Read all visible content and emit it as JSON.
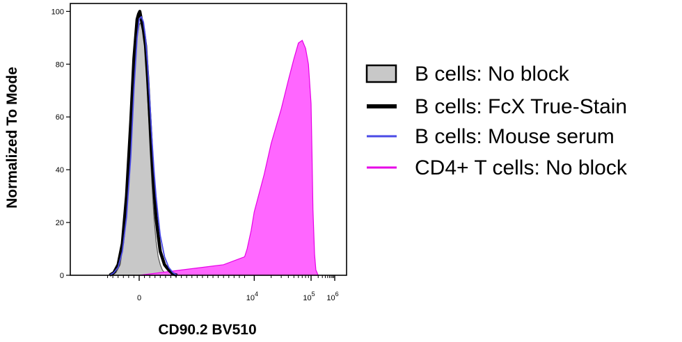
{
  "chart_data": {
    "type": "area",
    "title": "",
    "xlabel": "CD90.2 BV510",
    "ylabel": "Normalized To Mode",
    "y_ticks": [
      "0",
      "20",
      "40",
      "60",
      "80",
      "100"
    ],
    "ylim": [
      0,
      103
    ],
    "x_scale": "biexponential",
    "x_ticks": [
      {
        "base": "0",
        "exp": ""
      },
      {
        "base": "10",
        "exp": "4"
      },
      {
        "base": "10",
        "exp": "5"
      },
      {
        "base": "10",
        "exp": "6"
      }
    ],
    "grid": false,
    "legend_position": "right",
    "series": [
      {
        "name": "B cells: No block",
        "style": "filled",
        "color": "#c8c8c8",
        "stroke": "#555555",
        "points": [
          [
            -1400,
            0
          ],
          [
            -1100,
            1
          ],
          [
            -900,
            4
          ],
          [
            -700,
            15
          ],
          [
            -500,
            38
          ],
          [
            -300,
            70
          ],
          [
            -150,
            88
          ],
          [
            0,
            95
          ],
          [
            100,
            96
          ],
          [
            200,
            93
          ],
          [
            300,
            83
          ],
          [
            400,
            68
          ],
          [
            500,
            50
          ],
          [
            600,
            35
          ],
          [
            700,
            22
          ],
          [
            800,
            13
          ],
          [
            900,
            7
          ],
          [
            1000,
            4
          ],
          [
            1100,
            2
          ],
          [
            1200,
            1
          ],
          [
            1400,
            0
          ]
        ]
      },
      {
        "name": "B cells: FcX True-Stain",
        "style": "line",
        "color": "#000000",
        "points": [
          [
            -1400,
            0
          ],
          [
            -1200,
            1
          ],
          [
            -1000,
            4
          ],
          [
            -800,
            12
          ],
          [
            -600,
            30
          ],
          [
            -400,
            58
          ],
          [
            -250,
            82
          ],
          [
            -100,
            97
          ],
          [
            -30,
            99
          ],
          [
            30,
            100
          ],
          [
            100,
            97
          ],
          [
            200,
            93
          ],
          [
            300,
            87
          ],
          [
            400,
            75
          ],
          [
            500,
            60
          ],
          [
            600,
            45
          ],
          [
            700,
            33
          ],
          [
            800,
            22
          ],
          [
            900,
            15
          ],
          [
            1000,
            9
          ],
          [
            1200,
            4
          ],
          [
            1400,
            2
          ],
          [
            1600,
            0.5
          ],
          [
            1800,
            0
          ]
        ]
      },
      {
        "name": "B cells: Mouse serum",
        "style": "line",
        "color": "#4a4ae6",
        "points": [
          [
            -1400,
            0
          ],
          [
            -1200,
            1
          ],
          [
            -1000,
            3
          ],
          [
            -800,
            9
          ],
          [
            -600,
            22
          ],
          [
            -400,
            45
          ],
          [
            -250,
            70
          ],
          [
            -100,
            90
          ],
          [
            0,
            97
          ],
          [
            100,
            98
          ],
          [
            200,
            96
          ],
          [
            300,
            90
          ],
          [
            400,
            80
          ],
          [
            500,
            66
          ],
          [
            600,
            52
          ],
          [
            700,
            40
          ],
          [
            800,
            30
          ],
          [
            900,
            22
          ],
          [
            1000,
            15
          ],
          [
            1200,
            7
          ],
          [
            1400,
            3
          ],
          [
            1600,
            1
          ],
          [
            1800,
            0
          ]
        ]
      },
      {
        "name": "CD4+ T cells: No block",
        "style": "filled",
        "color": "#ff66ff",
        "stroke": "#e600e6",
        "points": [
          [
            0,
            0
          ],
          [
            500,
            0.5
          ],
          [
            1000,
            1
          ],
          [
            2000,
            2
          ],
          [
            3000,
            3
          ],
          [
            4000,
            4
          ],
          [
            5000,
            7
          ],
          [
            6000,
            10
          ],
          [
            8000,
            17
          ],
          [
            10000,
            24
          ],
          [
            15000,
            38
          ],
          [
            20000,
            50
          ],
          [
            30000,
            63
          ],
          [
            40000,
            74
          ],
          [
            50000,
            82
          ],
          [
            60000,
            88
          ],
          [
            70000,
            89
          ],
          [
            80000,
            86
          ],
          [
            90000,
            80
          ],
          [
            100000,
            65
          ],
          [
            110000,
            45
          ],
          [
            120000,
            25
          ],
          [
            140000,
            8
          ],
          [
            160000,
            2
          ],
          [
            200000,
            0
          ]
        ]
      }
    ]
  }
}
